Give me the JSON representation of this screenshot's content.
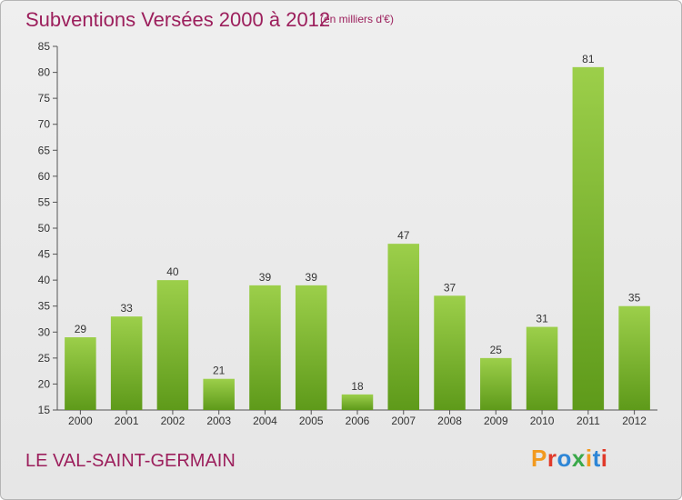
{
  "header": {
    "title": "Subventions Versées 2000 à 2012",
    "subtitle": "(en milliers d'€)"
  },
  "footer": {
    "commune": "LE VAL-SAINT-GERMAIN",
    "logo_text": "Proxiti",
    "logo_colors": [
      "#f29a1f",
      "#e03a2a",
      "#2e86d6",
      "#3aa84a",
      "#f29a1f",
      "#2e86d6",
      "#e03a2a"
    ]
  },
  "chart_data": {
    "type": "bar",
    "title": "Subventions Versées 2000 à 2012",
    "xlabel": "",
    "ylabel": "",
    "categories": [
      "2000",
      "2001",
      "2002",
      "2003",
      "2004",
      "2005",
      "2006",
      "2007",
      "2008",
      "2009",
      "2010",
      "2011",
      "2012"
    ],
    "values": [
      29,
      33,
      40,
      21,
      39,
      39,
      18,
      47,
      37,
      25,
      31,
      81,
      35
    ],
    "ylim": [
      15,
      85
    ],
    "yticks": [
      15,
      20,
      25,
      30,
      35,
      40,
      45,
      50,
      55,
      60,
      65,
      70,
      75,
      80,
      85
    ],
    "grid": false,
    "colors": {
      "bar_light": "#9ccf4a",
      "bar_dark": "#5e9a1a",
      "axis": "#555555"
    }
  }
}
